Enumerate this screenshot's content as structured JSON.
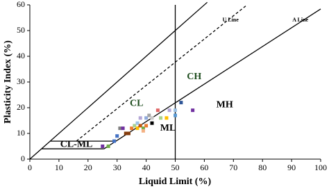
{
  "chart_data": {
    "type": "scatter",
    "x_label": "Liquid Limit (%)",
    "y_label": "Plasticity Index (%)",
    "xlim": [
      0,
      100
    ],
    "xticks": [
      0,
      10,
      20,
      30,
      40,
      50,
      60,
      70,
      80,
      90,
      100
    ],
    "ylim": [
      0,
      60
    ],
    "yticks": [
      0,
      10,
      20,
      30,
      40,
      50,
      60
    ],
    "lines": [
      {
        "x": [
          0,
          61
        ],
        "y": [
          0,
          61
        ],
        "color": "#000000",
        "dash": false
      },
      {
        "x": [
          16,
          74.7
        ],
        "y": [
          7,
          60
        ],
        "color": "#000000",
        "dash": true,
        "label": "U Line",
        "label_x": 69,
        "label_y": 54
      },
      {
        "x": [
          25.5,
          100
        ],
        "y": [
          4,
          58.4
        ],
        "color": "#000000",
        "dash": false,
        "label": "A Line",
        "label_x": 93,
        "label_y": 54
      },
      {
        "x": [
          50,
          50
        ],
        "y": [
          0,
          60
        ],
        "color": "#000000",
        "dash": false
      },
      {
        "x": [
          4,
          25.5
        ],
        "y": [
          4,
          4
        ],
        "color": "#000000",
        "dash": false
      },
      {
        "x": [
          7,
          29.6
        ],
        "y": [
          7,
          7
        ],
        "color": "#000000",
        "dash": false
      }
    ],
    "zones": [
      {
        "label": "CL",
        "x": 36.7,
        "y": 21.5,
        "color": "#1e4d1e"
      },
      {
        "label": "CH",
        "x": 56.5,
        "y": 32,
        "color": "#1e4d1e"
      },
      {
        "label": "MH",
        "x": 67,
        "y": 21,
        "color": "#000000"
      },
      {
        "label": "ML",
        "x": 47.5,
        "y": 12,
        "color": "#000000"
      },
      {
        "label": "CL-ML",
        "x": 16,
        "y": 5.6,
        "color": "#000000"
      }
    ],
    "series": [
      {
        "x": [
          25,
          27,
          29,
          30,
          31,
          32,
          33,
          34,
          35,
          36,
          37,
          37,
          38,
          38,
          39,
          39,
          40,
          40,
          41,
          42,
          42,
          44,
          45,
          47,
          48,
          50,
          50,
          52,
          56
        ],
        "values": [
          5,
          5,
          7,
          9,
          12,
          12,
          10,
          10,
          12,
          13,
          14,
          12,
          13,
          16,
          12,
          11,
          13,
          16,
          17,
          14,
          16,
          19,
          16,
          16,
          19,
          19,
          17,
          22,
          19
        ],
        "colors": [
          "#7030a0",
          "#70ad47",
          "#4472c4",
          "#4472c4",
          "#7f7f7f",
          "#7030a0",
          "#843c0c",
          "#843c0c",
          "#ed7d31",
          "#a9d18e",
          "#9dc3e6",
          "#ffc000",
          "#c55a11",
          "#b4a7d6",
          "#70ad47",
          "#f4b183",
          "#ed7d31",
          "#8faadc",
          "#a5a5a5",
          "#000000",
          "#c9c9c9",
          "#e06666",
          "#a9d18e",
          "#ffc000",
          "#b4a7d6",
          "#9dc3e6",
          "#5b9bd5",
          "#2f5597",
          "#7030a0"
        ]
      }
    ]
  }
}
